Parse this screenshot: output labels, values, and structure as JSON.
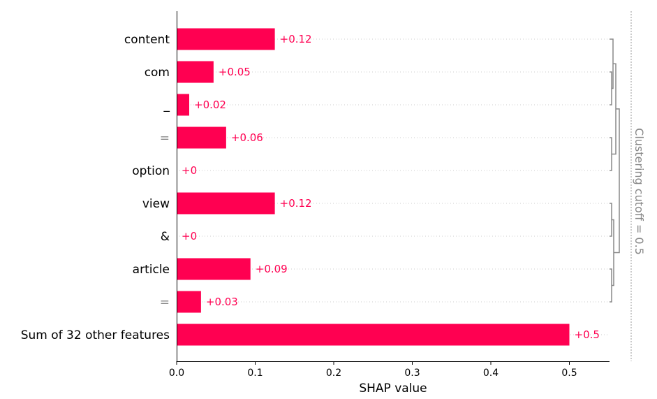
{
  "chart_data": {
    "type": "bar",
    "orientation": "horizontal",
    "categories": [
      "content",
      "com",
      "_",
      "=",
      "option",
      "view",
      "&",
      "article",
      "=",
      "Sum of 32 other features"
    ],
    "category_colors": [
      "#000000",
      "#000000",
      "#000000",
      "#888888",
      "#000000",
      "#000000",
      "#000000",
      "#000000",
      "#888888",
      "#000000"
    ],
    "values": [
      0.125,
      0.047,
      0.016,
      0.063,
      0.0,
      0.125,
      0.0,
      0.094,
      0.031,
      0.5
    ],
    "value_labels": [
      "+0.12",
      "+0.05",
      "+0.02",
      "+0.06",
      "+0",
      "+0.12",
      "+0",
      "+0.09",
      "+0.03",
      "+0.5"
    ],
    "xlabel": "SHAP value",
    "x_ticks": [
      "0.0",
      "0.1",
      "0.2",
      "0.3",
      "0.4",
      "0.5"
    ],
    "xlim": [
      0,
      0.55
    ],
    "bar_color": "#ff0051",
    "clustering_label": "Clustering cutoff = 0.5",
    "dendrogram_color": "#888888"
  }
}
